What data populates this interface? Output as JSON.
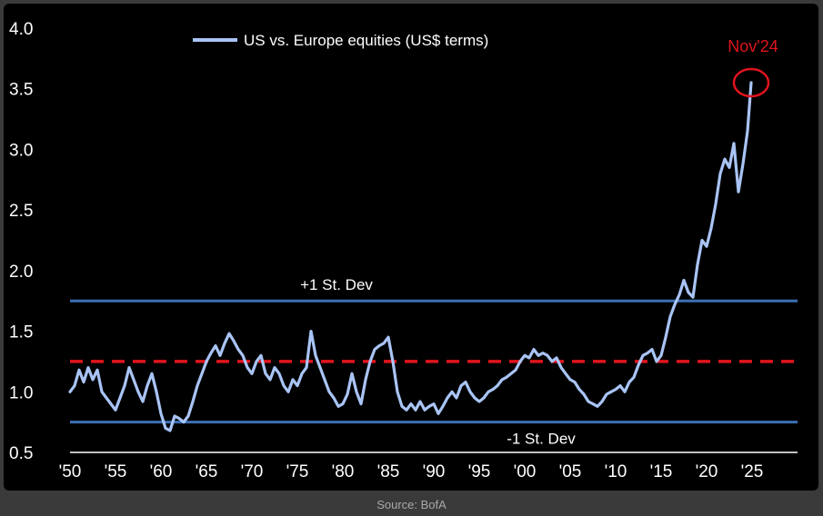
{
  "chart_data": {
    "type": "line",
    "legend": {
      "label": "US vs. Europe equities (US$ terms)",
      "position": "top-left"
    },
    "xlabel": "",
    "ylabel": "",
    "x_tick_labels": [
      "'50",
      "'55",
      "'60",
      "'65",
      "'70",
      "'75",
      "'80",
      "'85",
      "'90",
      "'95",
      "'00",
      "'05",
      "'10",
      "'15",
      "'20",
      "'25"
    ],
    "x_tick_years": [
      1950,
      1955,
      1960,
      1965,
      1970,
      1975,
      1980,
      1985,
      1990,
      1995,
      2000,
      2005,
      2010,
      2015,
      2020,
      2025
    ],
    "y_tick_labels": [
      "0.5",
      "1.0",
      "1.5",
      "2.0",
      "2.5",
      "3.0",
      "3.5",
      "4.0"
    ],
    "y_tick_values": [
      0.5,
      1.0,
      1.5,
      2.0,
      2.5,
      3.0,
      3.5,
      4.0
    ],
    "xlim": [
      1950,
      2030
    ],
    "ylim": [
      0.5,
      4.0
    ],
    "grid": false,
    "series": [
      {
        "name": "US vs. Europe equities (US$ terms)",
        "color": "#a9c4f5",
        "x": [
          1950.0,
          1950.5,
          1951.0,
          1951.5,
          1952.0,
          1952.5,
          1953.0,
          1953.5,
          1954.0,
          1954.5,
          1955.0,
          1955.5,
          1956.0,
          1956.5,
          1957.0,
          1957.5,
          1958.0,
          1958.5,
          1959.0,
          1959.5,
          1960.0,
          1960.5,
          1961.0,
          1961.5,
          1962.0,
          1962.5,
          1963.0,
          1963.5,
          1964.0,
          1964.5,
          1965.0,
          1965.5,
          1966.0,
          1966.5,
          1967.0,
          1967.5,
          1968.0,
          1968.5,
          1969.0,
          1969.5,
          1970.0,
          1970.5,
          1971.0,
          1971.5,
          1972.0,
          1972.5,
          1973.0,
          1973.5,
          1974.0,
          1974.5,
          1975.0,
          1975.5,
          1976.0,
          1976.5,
          1977.0,
          1977.5,
          1978.0,
          1978.5,
          1979.0,
          1979.5,
          1980.0,
          1980.5,
          1981.0,
          1981.5,
          1982.0,
          1982.5,
          1983.0,
          1983.5,
          1984.0,
          1984.5,
          1985.0,
          1985.5,
          1986.0,
          1986.5,
          1987.0,
          1987.5,
          1988.0,
          1988.5,
          1989.0,
          1989.5,
          1990.0,
          1990.5,
          1991.0,
          1991.5,
          1992.0,
          1992.5,
          1993.0,
          1993.5,
          1994.0,
          1994.5,
          1995.0,
          1995.5,
          1996.0,
          1996.5,
          1997.0,
          1997.5,
          1998.0,
          1998.5,
          1999.0,
          1999.5,
          2000.0,
          2000.5,
          2001.0,
          2001.5,
          2002.0,
          2002.5,
          2003.0,
          2003.5,
          2004.0,
          2004.5,
          2005.0,
          2005.5,
          2006.0,
          2006.5,
          2007.0,
          2007.5,
          2008.0,
          2008.5,
          2009.0,
          2009.5,
          2010.0,
          2010.5,
          2011.0,
          2011.5,
          2012.0,
          2012.5,
          2013.0,
          2013.5,
          2014.0,
          2014.5,
          2015.0,
          2015.5,
          2016.0,
          2016.5,
          2017.0,
          2017.5,
          2018.0,
          2018.5,
          2019.0,
          2019.5,
          2020.0,
          2020.5,
          2021.0,
          2021.5,
          2022.0,
          2022.5,
          2023.0,
          2023.5,
          2024.0,
          2024.5,
          2024.9
        ],
        "y": [
          1.0,
          1.05,
          1.18,
          1.08,
          1.2,
          1.1,
          1.18,
          1.0,
          0.95,
          0.9,
          0.85,
          0.95,
          1.05,
          1.2,
          1.1,
          1.0,
          0.92,
          1.05,
          1.15,
          1.0,
          0.82,
          0.7,
          0.68,
          0.8,
          0.78,
          0.75,
          0.8,
          0.92,
          1.05,
          1.15,
          1.25,
          1.32,
          1.38,
          1.3,
          1.4,
          1.48,
          1.42,
          1.35,
          1.3,
          1.2,
          1.15,
          1.25,
          1.3,
          1.15,
          1.1,
          1.2,
          1.15,
          1.05,
          1.0,
          1.1,
          1.05,
          1.15,
          1.2,
          1.5,
          1.3,
          1.2,
          1.1,
          1.0,
          0.95,
          0.88,
          0.9,
          0.98,
          1.15,
          1.0,
          0.9,
          1.1,
          1.25,
          1.35,
          1.38,
          1.4,
          1.45,
          1.25,
          1.0,
          0.88,
          0.85,
          0.9,
          0.85,
          0.92,
          0.85,
          0.88,
          0.9,
          0.82,
          0.88,
          0.95,
          1.0,
          0.95,
          1.05,
          1.08,
          1.0,
          0.95,
          0.92,
          0.95,
          1.0,
          1.02,
          1.05,
          1.1,
          1.12,
          1.15,
          1.18,
          1.25,
          1.3,
          1.28,
          1.35,
          1.3,
          1.32,
          1.3,
          1.25,
          1.28,
          1.2,
          1.15,
          1.1,
          1.08,
          1.02,
          0.98,
          0.92,
          0.9,
          0.88,
          0.92,
          0.98,
          1.0,
          1.02,
          1.05,
          1.0,
          1.08,
          1.12,
          1.22,
          1.3,
          1.32,
          1.35,
          1.25,
          1.3,
          1.45,
          1.62,
          1.72,
          1.8,
          1.92,
          1.82,
          1.78,
          2.05,
          2.25,
          2.2,
          2.35,
          2.55,
          2.8,
          2.92,
          2.85,
          3.05,
          2.65,
          2.88,
          3.15,
          3.55
        ]
      }
    ],
    "reference_lines": [
      {
        "name": "+1 St. Dev",
        "label": "+1 St. Dev",
        "value": 1.75,
        "style": "solid",
        "color": "#3c6fb4"
      },
      {
        "name": "mean",
        "value": 1.25,
        "style": "dashed",
        "color": "#e0141c"
      },
      {
        "name": "-1 St. Dev",
        "label": "-1 St. Dev",
        "value": 0.75,
        "style": "solid",
        "color": "#3c6fb4"
      }
    ],
    "annotations": [
      {
        "label": "Nov'24",
        "x": 2024.9,
        "y": 3.55,
        "color": "#e0141c",
        "marker": "circle"
      }
    ],
    "colors": {
      "background": "#000000",
      "axis": "#ffffff",
      "series": "#a9c4f5",
      "sd_line": "#3c6fb4",
      "mean_line": "#e0141c",
      "highlight": "#e0141c"
    }
  },
  "source": "Source: BofA"
}
